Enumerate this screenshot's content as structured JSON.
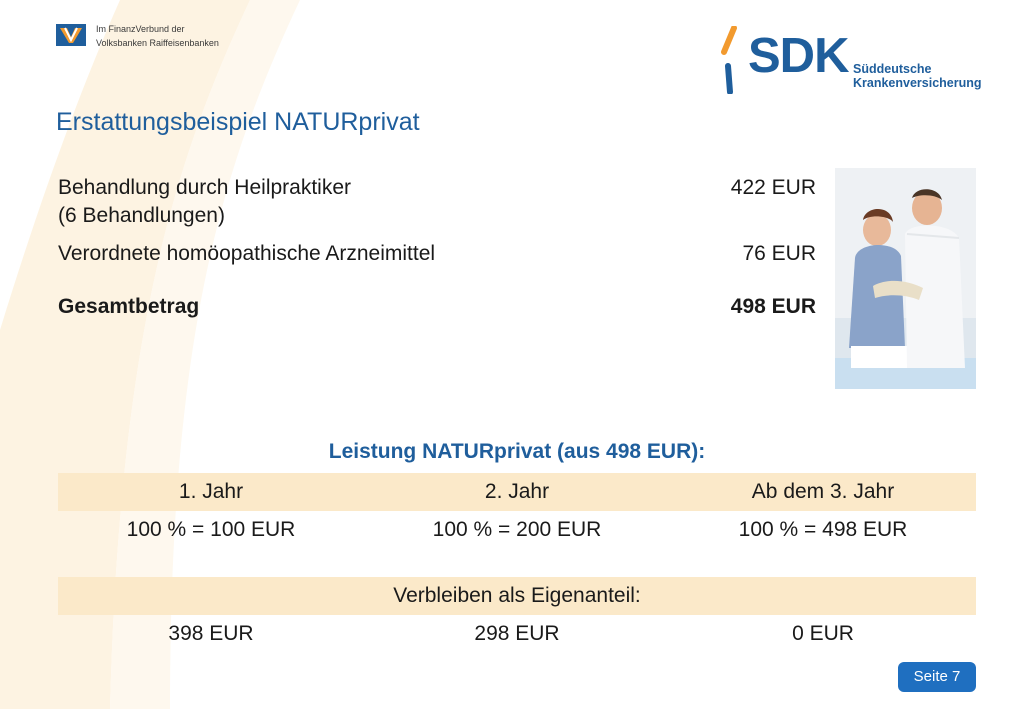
{
  "header": {
    "vr_line1": "Im FinanzVerbund der",
    "vr_line2": "Volksbanken Raiffeisenbanken",
    "sdk_wordmark": "SDK",
    "sdk_sub1": "Süddeutsche",
    "sdk_sub2": "Krankenversicherung"
  },
  "title": "Erstattungsbeispiel NATURprivat",
  "costs": [
    {
      "label": "Behandlung durch Heilpraktiker",
      "sub": "(6 Behandlungen)",
      "amount": "422 EUR"
    },
    {
      "label": "Verordnete homöopathische Arzneimittel",
      "amount": "76 EUR"
    },
    {
      "label": "Gesamtbetrag",
      "amount": "498 EUR"
    }
  ],
  "benefits": {
    "title": "Leistung NATURprivat (aus 498 EUR):",
    "headers": [
      "1. Jahr",
      "2. Jahr",
      "Ab dem 3. Jahr"
    ],
    "values": [
      "100 % = 100 EUR",
      "100 % = 200 EUR",
      "100 % = 498 EUR"
    ],
    "remaining_label": "Verbleiben als Eigenanteil:",
    "remaining_values": [
      "398 EUR",
      "298 EUR",
      "0 EUR"
    ]
  },
  "footer": {
    "page": "Seite 7"
  },
  "colors": {
    "brand_blue": "#1f5e9c",
    "band": "#fbe9c9",
    "badge": "#1f6fc0",
    "swoosh": "#fdf3e2",
    "sdk_orange": "#f29a2e"
  }
}
